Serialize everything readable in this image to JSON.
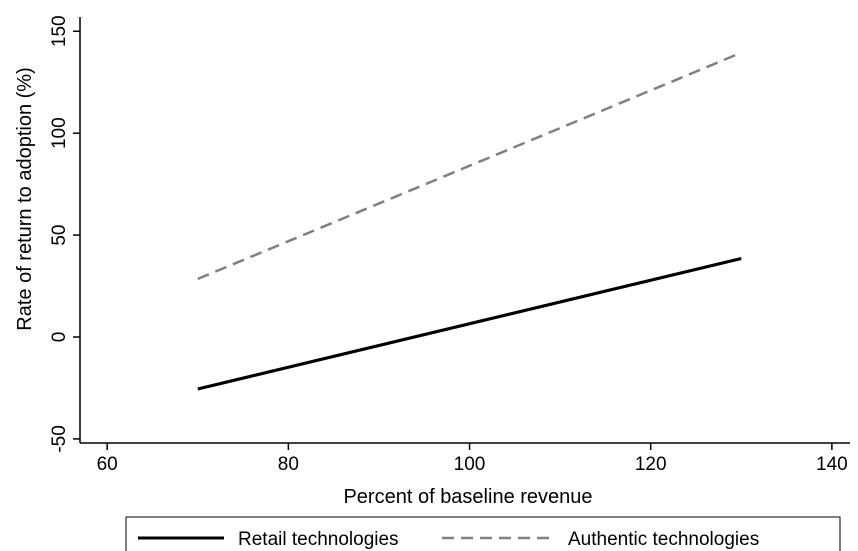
{
  "chart_data": {
    "type": "line",
    "title": "",
    "xlabel": "Percent of baseline revenue",
    "ylabel": "Rate of return to adoption (%)",
    "xlim": [
      57,
      142
    ],
    "ylim": [
      -52,
      157
    ],
    "xticks": [
      60,
      80,
      100,
      120,
      140
    ],
    "yticks": [
      -50,
      0,
      50,
      100,
      150
    ],
    "grid": false,
    "legend_position": "bottom",
    "series": [
      {
        "name": "Retail technologies",
        "style": "solid",
        "color": "#000000",
        "x": [
          70,
          130
        ],
        "y": [
          -25.5,
          38.5
        ]
      },
      {
        "name": "Authentic technologies",
        "style": "dashed",
        "color": "#808080",
        "x": [
          70,
          130
        ],
        "y": [
          28.5,
          139.5
        ]
      }
    ]
  }
}
